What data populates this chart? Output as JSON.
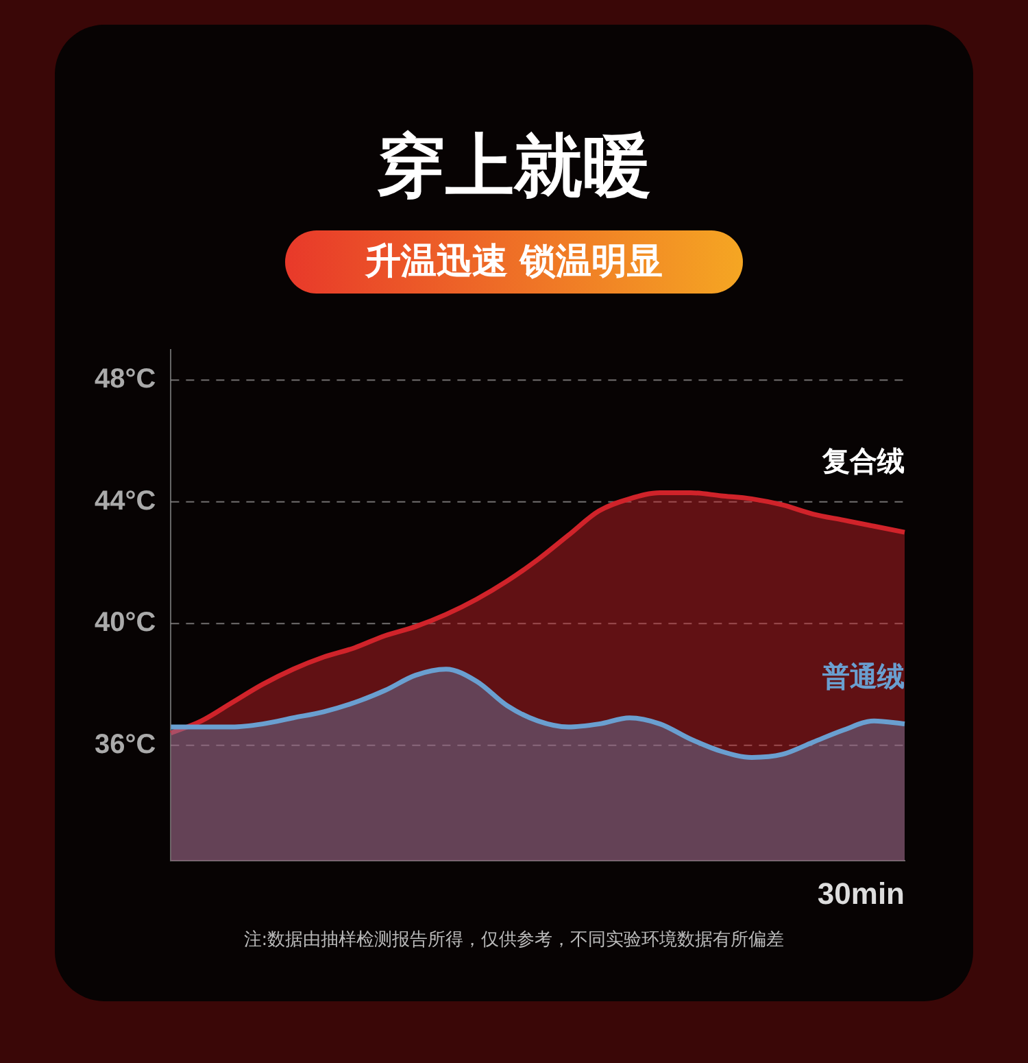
{
  "chart_data": {
    "type": "area",
    "title": "穿上就暖",
    "subtitle": "升温迅速 锁温明显",
    "xlabel": "30min",
    "annotations": [
      "注:数据由抽样检测报告所得，仅供参考，不同实验环境数据有所偏差"
    ],
    "categories": [
      null,
      null,
      null,
      null,
      null,
      null,
      null,
      null,
      null,
      null,
      null,
      null,
      null,
      null,
      null,
      null,
      null,
      null,
      null,
      null,
      null,
      null,
      null,
      null,
      null
    ],
    "series": [
      {
        "name": "复合绒",
        "color": "#d0232a",
        "values": [
          36.4,
          36.8,
          37.4,
          38.0,
          38.5,
          38.9,
          39.2,
          39.6,
          39.9,
          40.3,
          40.8,
          41.4,
          42.1,
          42.9,
          43.7,
          44.1,
          44.3,
          44.3,
          44.2,
          44.1,
          43.9,
          43.6,
          43.4,
          43.2,
          43.0
        ]
      },
      {
        "name": "普通绒",
        "color": "#6a9fd0",
        "values": [
          36.6,
          36.6,
          36.6,
          36.7,
          36.9,
          37.1,
          37.4,
          37.8,
          38.3,
          38.5,
          38.1,
          37.3,
          36.8,
          36.6,
          36.7,
          36.9,
          36.7,
          36.2,
          35.8,
          35.6,
          35.7,
          36.1,
          36.5,
          36.8,
          36.7
        ]
      }
    ],
    "ylim": [
      32.2,
      49
    ],
    "yticks": [
      {
        "value": 36,
        "label": "36°C"
      },
      {
        "value": 40,
        "label": "40°C"
      },
      {
        "value": 44,
        "label": "44°C"
      },
      {
        "value": 48,
        "label": "48°C"
      }
    ],
    "grid": "y",
    "line_style": "solid",
    "marker": "none",
    "legend": false,
    "tick_labels": "y"
  }
}
